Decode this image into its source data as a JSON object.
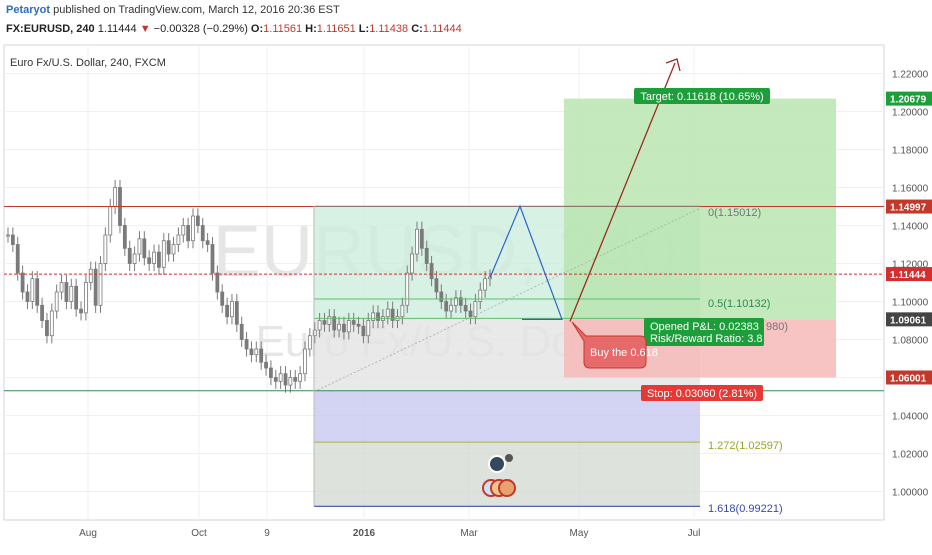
{
  "header": {
    "author": "Petaryot",
    "published": "published on TradingView.com, March 12, 2016 20:36 EST",
    "symbol": "FX:EURUSD, 240",
    "last": "1.11444",
    "change": "−0.00328 (−0.29%)",
    "open_label": "O:",
    "open": "1.11561",
    "high_label": "H:",
    "high": "1.11651",
    "low_label": "L:",
    "low": "1.11438",
    "close_label": "C:",
    "close": "1.11444"
  },
  "chart": {
    "legend": "Euro Fx/U.S. Dollar, 240, FXCM",
    "watermark_symbol": "EURUSD, 240",
    "watermark_name": "Euro Fx/U.S. Dollar",
    "colors": {
      "resistance": "#c0392b",
      "support": "#2e8b57",
      "price_line": "#d32f2f",
      "target_bg": "#b9e5b0",
      "stop_bg": "#f6b9b9",
      "fib_blue": "#c8c8f0",
      "label_green": "#1e9e3a",
      "label_red": "#e53935",
      "candle": "#7a7a7a"
    },
    "price_tags": [
      {
        "value": "1.20679",
        "color": "#1e9e3a"
      },
      {
        "value": "1.14997",
        "color": "#c0392b"
      },
      {
        "value": "1.11444",
        "color": "#d32f2f"
      },
      {
        "value": "1.09061",
        "color": "#444444"
      },
      {
        "value": "1.06001",
        "color": "#c0392b"
      }
    ],
    "annotations": {
      "target": "Target: 0.11618 (10.65%)",
      "stop": "Stop: 0.03060 (2.81%)",
      "pnl": "Opened P&L: 0.02383",
      "rr": "Risk/Reward Ratio: 3.8",
      "callout": "Buy the 0.618",
      "fib_0": "0(1.15012)",
      "fib_05": "0.5(1.10132)",
      "fib_0618_partial": "980)",
      "fib_1272": "1.272(1.02597)",
      "fib_1618": "1.618(0.99221)"
    }
  },
  "chart_data": {
    "type": "candlestick",
    "title": "Euro Fx/U.S. Dollar, 240, FXCM",
    "xlabel": "",
    "ylabel": "",
    "ylim": [
      0.985,
      1.235
    ],
    "y_ticks": [
      "1.22000",
      "1.20000",
      "1.18000",
      "1.16000",
      "1.14000",
      "1.12000",
      "1.10000",
      "1.08000",
      "1.06000",
      "1.04000",
      "1.02000",
      "1.00000"
    ],
    "y_tick_values": [
      1.22,
      1.2,
      1.18,
      1.16,
      1.14,
      1.12,
      1.1,
      1.08,
      1.06,
      1.04,
      1.02,
      1.0
    ],
    "x_ticks": [
      "Aug",
      "Oct",
      "9",
      "2016",
      "Mar",
      "May",
      "Jul"
    ],
    "series": [
      {
        "name": "",
        "values": [
          1.135,
          1.13,
          1.115,
          1.105,
          1.1,
          1.112,
          1.098,
          1.09,
          1.082,
          1.095,
          1.105,
          1.11,
          1.1,
          1.108,
          1.096,
          1.094,
          1.11,
          1.117,
          1.098,
          1.12,
          1.135,
          1.15,
          1.16,
          1.14,
          1.128,
          1.12,
          1.125,
          1.133,
          1.123,
          1.12,
          1.126,
          1.118,
          1.132,
          1.125,
          1.13,
          1.135,
          1.14,
          1.132,
          1.145,
          1.14,
          1.132,
          1.13,
          1.115,
          1.105,
          1.098,
          1.092,
          1.1,
          1.088,
          1.08,
          1.075,
          1.072,
          1.075,
          1.068,
          1.065,
          1.06,
          1.058,
          1.062,
          1.056,
          1.06,
          1.058,
          1.062,
          1.075,
          1.082,
          1.085,
          1.09,
          1.088,
          1.092,
          1.085,
          1.088,
          1.084,
          1.09,
          1.088,
          1.087,
          1.082,
          1.09,
          1.094,
          1.09,
          1.092,
          1.096,
          1.09,
          1.092,
          1.098,
          1.115,
          1.125,
          1.138,
          1.128,
          1.12,
          1.112,
          1.105,
          1.1,
          1.095,
          1.098,
          1.102,
          1.098,
          1.095,
          1.092,
          1.1,
          1.106,
          1.112,
          1.113
        ]
      }
    ],
    "levels": {
      "resistance": 1.14997,
      "support": 1.053,
      "last_price": 1.11444,
      "target": 1.20679,
      "entry": 1.09061,
      "stop": 1.06001,
      "fib_0": 1.15012,
      "fib_0_5": 1.10132,
      "fib_1_272": 1.02597,
      "fib_1_618": 0.99221
    },
    "grid": true,
    "legend": "top-left"
  }
}
